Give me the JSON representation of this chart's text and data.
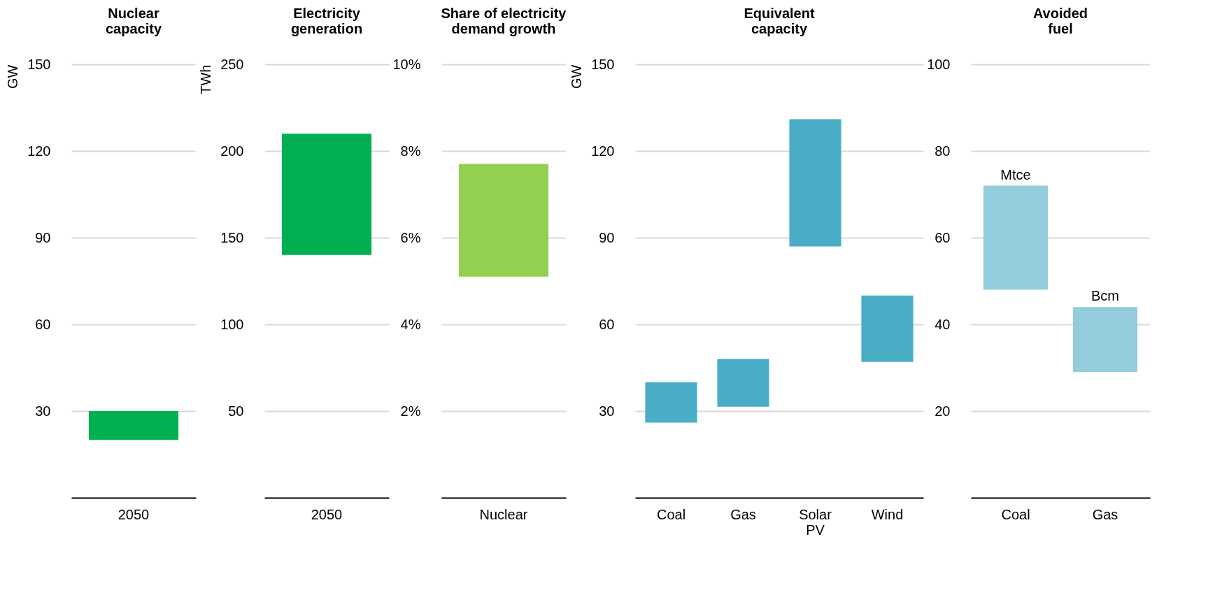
{
  "chart_data": [
    {
      "type": "bar",
      "title": "Nuclear capacity",
      "ylabel": "GW",
      "categories": [
        "2050"
      ],
      "base": [
        20
      ],
      "values": [
        10
      ],
      "colors": [
        "#00b050"
      ],
      "ylim": [
        0,
        150
      ],
      "yticks": [
        30,
        60,
        90,
        120,
        150
      ],
      "grid": "y"
    },
    {
      "type": "bar",
      "title": "Electricity generation",
      "ylabel": "TWh",
      "categories": [
        "2050"
      ],
      "base": [
        140
      ],
      "values": [
        70
      ],
      "colors": [
        "#00b050"
      ],
      "ylim": [
        0,
        250
      ],
      "yticks": [
        50,
        100,
        150,
        200,
        250
      ],
      "grid": "y"
    },
    {
      "type": "bar",
      "title": "Share of electricity demand growth",
      "categories": [
        "Nuclear"
      ],
      "base": [
        5.1
      ],
      "values": [
        2.6
      ],
      "colors": [
        "#92d050"
      ],
      "ylim": [
        0,
        10
      ],
      "yticks": [
        {
          "value": 2,
          "label": "2%"
        },
        {
          "value": 4,
          "label": "4%"
        },
        {
          "value": 6,
          "label": "6%"
        },
        {
          "value": 8,
          "label": "8%"
        },
        {
          "value": 10,
          "label": "10%"
        }
      ],
      "grid": "y"
    },
    {
      "type": "bar",
      "title": "Equivalent capacity",
      "ylabel": "GW",
      "categories": [
        "Coal",
        "Gas",
        "Solar PV",
        "Wind"
      ],
      "base": [
        26,
        31.5,
        87,
        47
      ],
      "values": [
        14,
        16.5,
        44,
        23
      ],
      "colors": [
        "#4bacc6",
        "#4bacc6",
        "#4bacc6",
        "#4bacc6"
      ],
      "ylim": [
        0,
        150
      ],
      "yticks": [
        30,
        60,
        90,
        120,
        150
      ],
      "grid": "y"
    },
    {
      "type": "bar",
      "title": "Avoided fuel",
      "categories": [
        "Coal",
        "Gas"
      ],
      "base": [
        48,
        29
      ],
      "values": [
        24,
        15
      ],
      "colors": [
        "#93cddd",
        "#93cddd"
      ],
      "ylim": [
        0,
        100
      ],
      "yticks": [
        20,
        40,
        60,
        80,
        100
      ],
      "grid": "y",
      "annotations": [
        {
          "text": "Mtce",
          "x": "Coal",
          "y": 72
        },
        {
          "text": "Bcm",
          "x": "Gas",
          "y": 44
        }
      ]
    }
  ]
}
